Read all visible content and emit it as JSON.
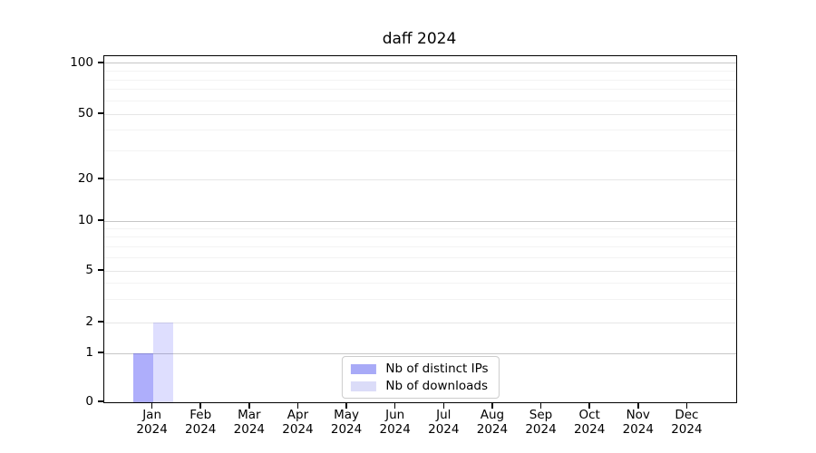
{
  "chart_data": {
    "type": "bar",
    "title": "daff 2024",
    "categories": [
      "Jan 2024",
      "Feb 2024",
      "Mar 2024",
      "Apr 2024",
      "May 2024",
      "Jun 2024",
      "Jul 2024",
      "Aug 2024",
      "Sep 2024",
      "Oct 2024",
      "Nov 2024",
      "Dec 2024"
    ],
    "x": {
      "months": [
        "Jan",
        "Feb",
        "Mar",
        "Apr",
        "May",
        "Jun",
        "Jul",
        "Aug",
        "Sep",
        "Oct",
        "Nov",
        "Dec"
      ],
      "year": "2024"
    },
    "series": [
      {
        "name": "Nb of distinct IPs",
        "color": "rgba(30,30,245,0.36)",
        "solid_color": "#a8aaf7",
        "values": [
          1,
          0,
          0,
          0,
          0,
          0,
          0,
          0,
          0,
          0,
          0,
          0
        ]
      },
      {
        "name": "Nb of downloads",
        "color": "rgba(30,30,245,0.145)",
        "solid_color": "#dbdcf8",
        "values": [
          2,
          0,
          0,
          0,
          0,
          0,
          0,
          0,
          0,
          0,
          0,
          0
        ]
      }
    ],
    "yaxis": {
      "scale": "log-like (linear segment from 0 to 1)",
      "ylim": [
        0,
        115
      ],
      "major_ticks": [
        0,
        1,
        2,
        5,
        10,
        20,
        50,
        100
      ],
      "minor_gridlines": [
        3,
        4,
        6,
        7,
        8,
        9,
        30,
        40,
        60,
        70,
        80,
        90
      ],
      "anchors": [
        [
          0,
          0
        ],
        [
          1,
          0.1414
        ],
        [
          2,
          0.2304
        ],
        [
          5,
          0.3796
        ],
        [
          10,
          0.5236
        ],
        [
          20,
          0.644
        ],
        [
          50,
          0.8325
        ],
        [
          100,
          0.9791
        ]
      ]
    },
    "legend": {
      "position": "lower center",
      "entries": [
        "Nb of distinct IPs",
        "Nb of downloads"
      ]
    },
    "grid": true
  },
  "colors": {
    "grid_decade": "#c6c6c6",
    "grid_mid": "#e6e6e6",
    "grid_minor": "#f3f3f3",
    "spine": "#000000",
    "legend_border": "#cccccc",
    "text": "#000000",
    "background": "#ffffff"
  }
}
